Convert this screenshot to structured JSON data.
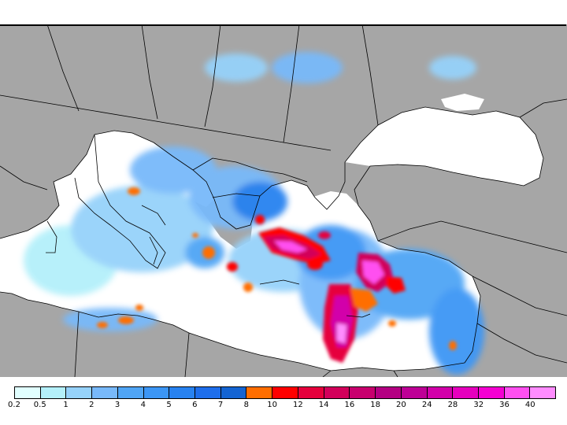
{
  "map": {
    "region": "Mediterranean Sea",
    "land_color": "#a6a6a6",
    "sea_color": "#ffffff",
    "border_color": "#000000"
  },
  "legend": {
    "labels": [
      "0.2",
      "0.5",
      "1",
      "2",
      "3",
      "4",
      "5",
      "6",
      "7",
      "8",
      "10",
      "12",
      "14",
      "16",
      "18",
      "20",
      "24",
      "28",
      "32",
      "36",
      "40"
    ],
    "colors": [
      "#e1ffff",
      "#b4f0fa",
      "#96d2fa",
      "#78b9fa",
      "#50a5f5",
      "#3c96f5",
      "#2882f0",
      "#1e6eeb",
      "#1464d2",
      "#ff6e00",
      "#ff0000",
      "#e6003c",
      "#d2005a",
      "#c8006e",
      "#b40082",
      "#be0096",
      "#d200aa",
      "#e600be",
      "#f500d2",
      "#ff50f0",
      "#ff8cff"
    ]
  }
}
